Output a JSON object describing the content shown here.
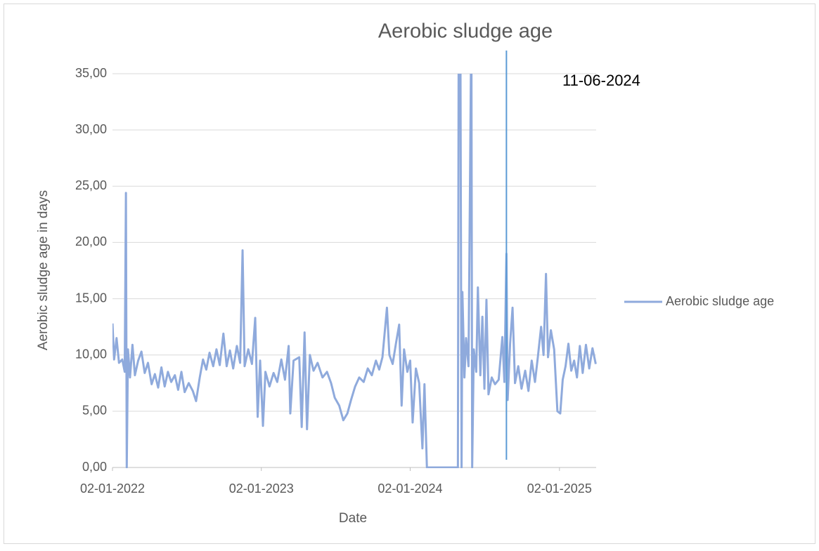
{
  "chart_data": {
    "type": "line",
    "title": "Aerobic sludge age",
    "x_label": "Date",
    "y_label": "Aerobic sludge age in days",
    "annotation": {
      "text": "11-06-2024",
      "x": "2024-08-25",
      "color": "#5b9bd5"
    },
    "legend": "right",
    "grid": true,
    "xlim": [
      "2022-01-02",
      "2025-04-02"
    ],
    "xticks": [
      {
        "value": "2022-01-02",
        "label": "02-01-2022"
      },
      {
        "value": "2023-01-02",
        "label": "02-01-2023"
      },
      {
        "value": "2024-01-02",
        "label": "02-01-2024"
      },
      {
        "value": "2025-01-02",
        "label": "02-01-2025"
      }
    ],
    "ylim": [
      0,
      35
    ],
    "yticks": [
      {
        "value": 0,
        "label": "0,00"
      },
      {
        "value": 5,
        "label": "5,00"
      },
      {
        "value": 10,
        "label": "10,00"
      },
      {
        "value": 15,
        "label": "15,00"
      },
      {
        "value": 20,
        "label": "20,00"
      },
      {
        "value": 25,
        "label": "25,00"
      },
      {
        "value": 30,
        "label": "30,00"
      },
      {
        "value": 35,
        "label": "35,00"
      }
    ],
    "x": [
      "2022-01-02",
      "2022-01-06",
      "2022-01-12",
      "2022-01-18",
      "2022-01-26",
      "2022-02-01",
      "2022-02-04",
      "2022-02-06",
      "2022-02-09",
      "2022-02-14",
      "2022-02-20",
      "2022-02-26",
      "2022-03-06",
      "2022-03-14",
      "2022-03-22",
      "2022-03-30",
      "2022-04-08",
      "2022-04-16",
      "2022-04-24",
      "2022-05-02",
      "2022-05-10",
      "2022-05-18",
      "2022-05-26",
      "2022-06-04",
      "2022-06-12",
      "2022-06-20",
      "2022-06-28",
      "2022-07-08",
      "2022-07-18",
      "2022-07-26",
      "2022-08-04",
      "2022-08-12",
      "2022-08-20",
      "2022-08-28",
      "2022-09-06",
      "2022-09-14",
      "2022-09-22",
      "2022-10-01",
      "2022-10-09",
      "2022-10-17",
      "2022-10-25",
      "2022-11-03",
      "2022-11-11",
      "2022-11-17",
      "2022-11-22",
      "2022-12-01",
      "2022-12-10",
      "2022-12-18",
      "2022-12-24",
      "2022-12-30",
      "2023-01-06",
      "2023-01-12",
      "2023-01-22",
      "2023-02-01",
      "2023-02-10",
      "2023-02-20",
      "2023-03-01",
      "2023-03-10",
      "2023-03-14",
      "2023-03-22",
      "2023-04-05",
      "2023-04-11",
      "2023-04-18",
      "2023-04-24",
      "2023-05-01",
      "2023-05-10",
      "2023-05-20",
      "2023-06-01",
      "2023-06-12",
      "2023-06-22",
      "2023-07-01",
      "2023-07-12",
      "2023-07-22",
      "2023-08-01",
      "2023-08-10",
      "2023-08-20",
      "2023-08-30",
      "2023-09-10",
      "2023-09-20",
      "2023-09-30",
      "2023-10-10",
      "2023-10-18",
      "2023-10-26",
      "2023-11-06",
      "2023-11-12",
      "2023-11-20",
      "2023-11-28",
      "2023-12-06",
      "2023-12-12",
      "2023-12-18",
      "2023-12-26",
      "2024-01-02",
      "2024-01-08",
      "2024-01-16",
      "2024-01-24",
      "2024-02-01",
      "2024-02-06",
      "2024-02-12",
      "2024-04-28",
      "2024-04-30",
      "2024-05-04",
      "2024-05-07",
      "2024-05-09",
      "2024-05-14",
      "2024-05-18",
      "2024-05-24",
      "2024-05-31",
      "2024-06-02",
      "2024-06-06",
      "2024-06-12",
      "2024-06-16",
      "2024-06-22",
      "2024-06-27",
      "2024-07-02",
      "2024-07-07",
      "2024-07-12",
      "2024-07-20",
      "2024-07-28",
      "2024-08-06",
      "2024-08-15",
      "2024-08-20",
      "2024-08-25",
      "2024-08-28",
      "2024-09-03",
      "2024-09-09",
      "2024-09-15",
      "2024-09-23",
      "2024-10-01",
      "2024-10-10",
      "2024-10-18",
      "2024-10-26",
      "2024-11-03",
      "2024-11-10",
      "2024-11-18",
      "2024-11-24",
      "2024-11-30",
      "2024-12-05",
      "2024-12-12",
      "2024-12-20",
      "2024-12-28",
      "2025-01-04",
      "2025-01-10",
      "2025-01-17",
      "2025-01-24",
      "2025-01-31",
      "2025-02-07",
      "2025-02-14",
      "2025-02-21",
      "2025-02-28",
      "2025-03-08",
      "2025-03-16",
      "2025-03-24",
      "2025-04-01"
    ],
    "series": [
      {
        "name": "Aerobic sludge age",
        "color": "#8faadc",
        "values": [
          12.8,
          9.6,
          11.5,
          9.3,
          9.6,
          8.5,
          24.4,
          0,
          10.5,
          8.0,
          10.9,
          8.2,
          9.5,
          10.3,
          8.4,
          9.3,
          7.4,
          8.3,
          7.1,
          8.9,
          7.2,
          8.5,
          7.6,
          8.2,
          6.9,
          8.5,
          6.7,
          7.5,
          6.8,
          5.9,
          8.0,
          9.6,
          8.7,
          10.2,
          9.0,
          10.5,
          9.1,
          11.9,
          9.0,
          10.4,
          8.8,
          10.8,
          9.3,
          19.3,
          9.0,
          10.5,
          9.2,
          13.3,
          4.5,
          9.5,
          3.7,
          8.5,
          7.2,
          8.4,
          7.6,
          9.6,
          7.8,
          10.8,
          4.8,
          9.5,
          9.8,
          3.6,
          12.0,
          3.4,
          10.0,
          8.6,
          9.3,
          8.0,
          8.5,
          7.5,
          6.2,
          5.5,
          4.2,
          4.8,
          6.0,
          7.2,
          8.0,
          7.6,
          8.8,
          8.2,
          9.5,
          8.7,
          9.8,
          14.2,
          10.0,
          9.2,
          11.0,
          12.7,
          5.5,
          10.5,
          8.5,
          9.5,
          4.0,
          8.8,
          7.5,
          1.7,
          7.4,
          0,
          0,
          40,
          40,
          0,
          15.6,
          8.0,
          11.5,
          9.0,
          40,
          0,
          10.5,
          8.5,
          16.0,
          8.2,
          13.4,
          7.0,
          14.9,
          6.5,
          8.0,
          7.4,
          7.8,
          11.6,
          7.6,
          19.0,
          6.0,
          11.0,
          14.2,
          7.5,
          9.0,
          7.0,
          8.6,
          6.8,
          9.5,
          7.6,
          9.8,
          12.5,
          10.0,
          17.2,
          9.8,
          12.2,
          10.5,
          5.0,
          4.8,
          7.8,
          9.0,
          11.0,
          8.6,
          9.5,
          8.0,
          10.8,
          8.4,
          10.9,
          8.8,
          10.6,
          9.2
        ]
      }
    ]
  }
}
